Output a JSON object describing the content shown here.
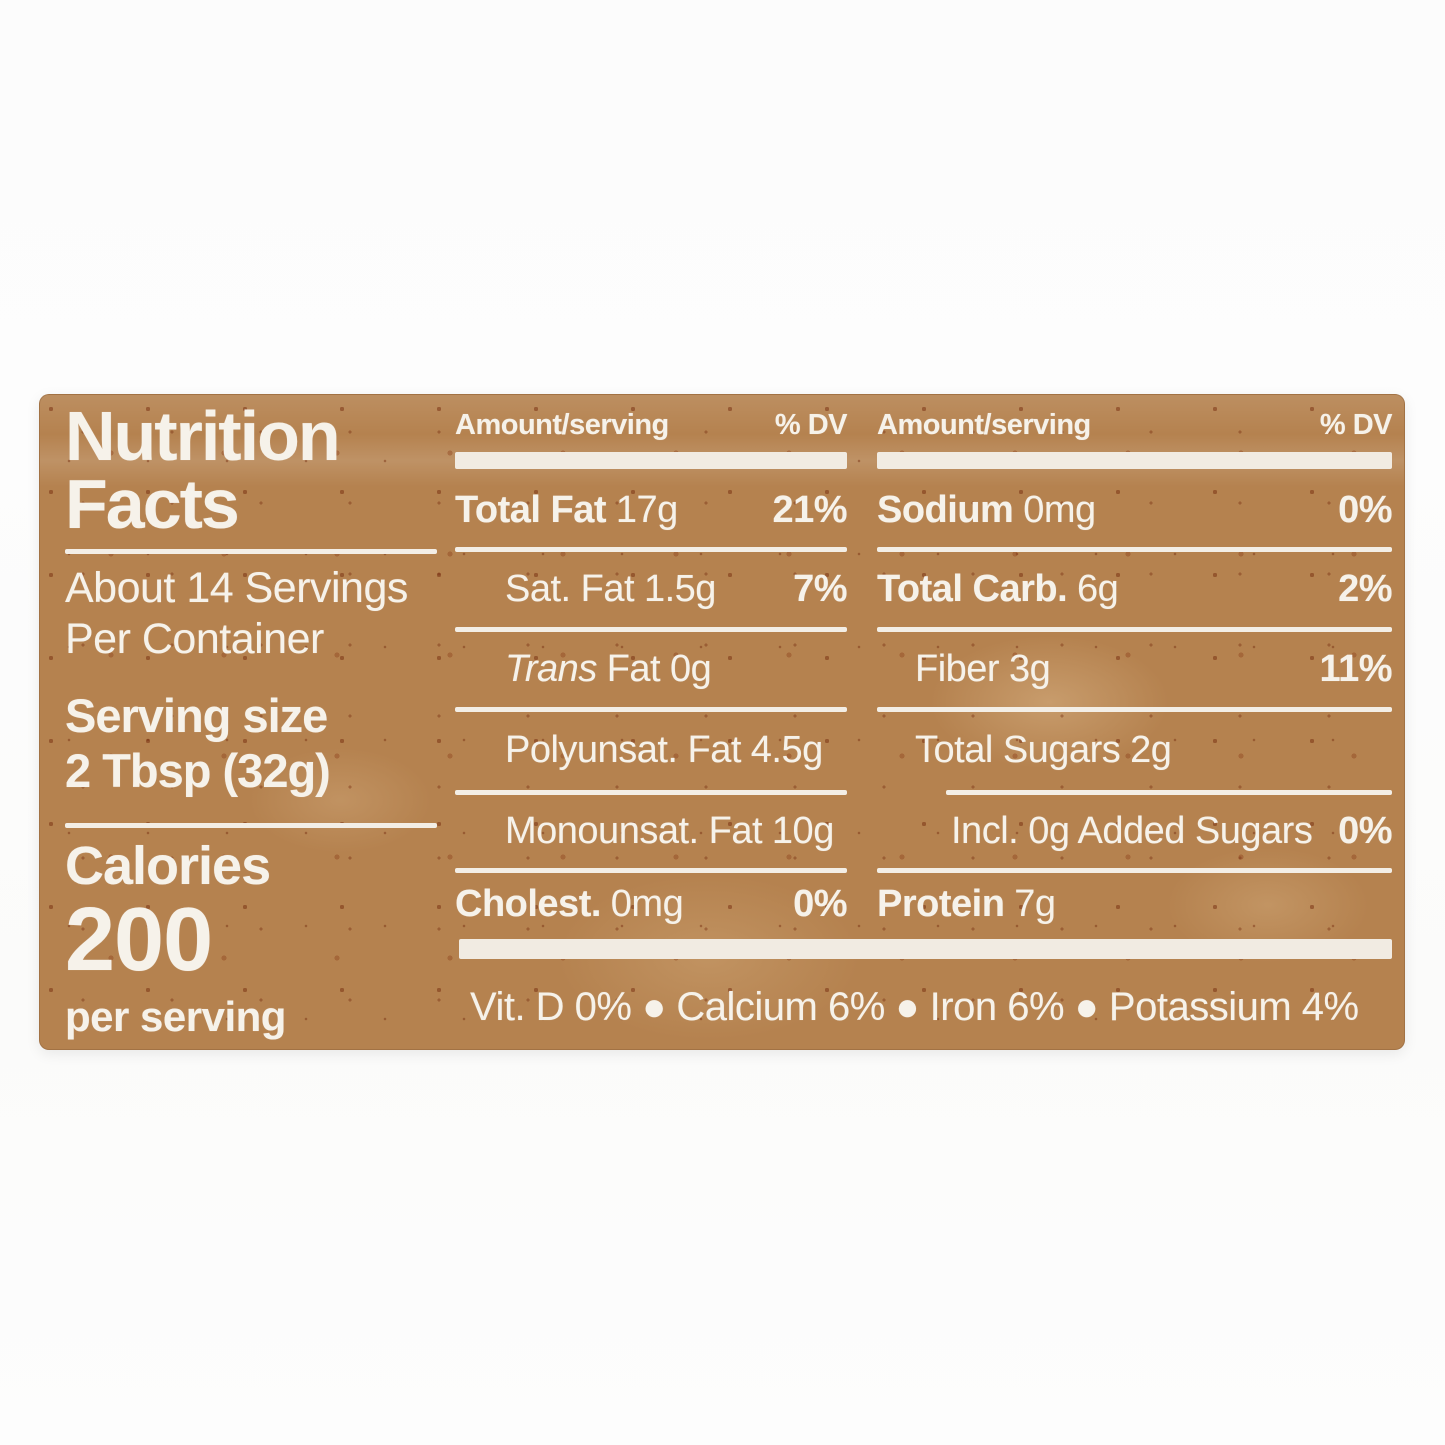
{
  "page": {
    "background": "#fdfdfd"
  },
  "label": {
    "background_color": "#b5824f",
    "text_color": "#f6f2ea",
    "title_line1": "Nutrition",
    "title_line2": "Facts",
    "servings_line1": "About 14 Servings",
    "servings_line2": "Per Container",
    "serving_size_label": "Serving size",
    "serving_size_value": "2 Tbsp (32g)",
    "calories_label": "Calories",
    "calories_value": "200",
    "calories_unit": "per serving",
    "header_amount": "Amount/serving",
    "header_dv": "% DV",
    "mid_rows": [
      {
        "label": "Total Fat",
        "value": "17g",
        "dv": "21%"
      },
      {
        "label": "Sat. Fat",
        "value": "1.5g",
        "dv": "7%"
      },
      {
        "label_italic": "Trans",
        "label": "Fat",
        "value": "0g",
        "dv": ""
      },
      {
        "label": "Polyunsat. Fat",
        "value": "4.5g",
        "dv": ""
      },
      {
        "label": "Monounsat. Fat",
        "value": "10g",
        "dv": ""
      },
      {
        "label": "Cholest.",
        "value": "0mg",
        "dv": "0%"
      }
    ],
    "right_rows": [
      {
        "label": "Sodium",
        "value": "0mg",
        "dv": "0%"
      },
      {
        "label": "Total Carb.",
        "value": "6g",
        "dv": "2%"
      },
      {
        "label": "Fiber",
        "value": "3g",
        "dv": "11%"
      },
      {
        "label": "Total Sugars",
        "value": "2g",
        "dv": ""
      },
      {
        "label": "Incl. 0g Added Sugars",
        "value": "",
        "dv": "0%"
      },
      {
        "label": "Protein",
        "value": "7g",
        "dv": ""
      }
    ],
    "footer": "Vit. D 0% ● Calcium 6% ● Iron 6% ● Potassium 4%"
  }
}
